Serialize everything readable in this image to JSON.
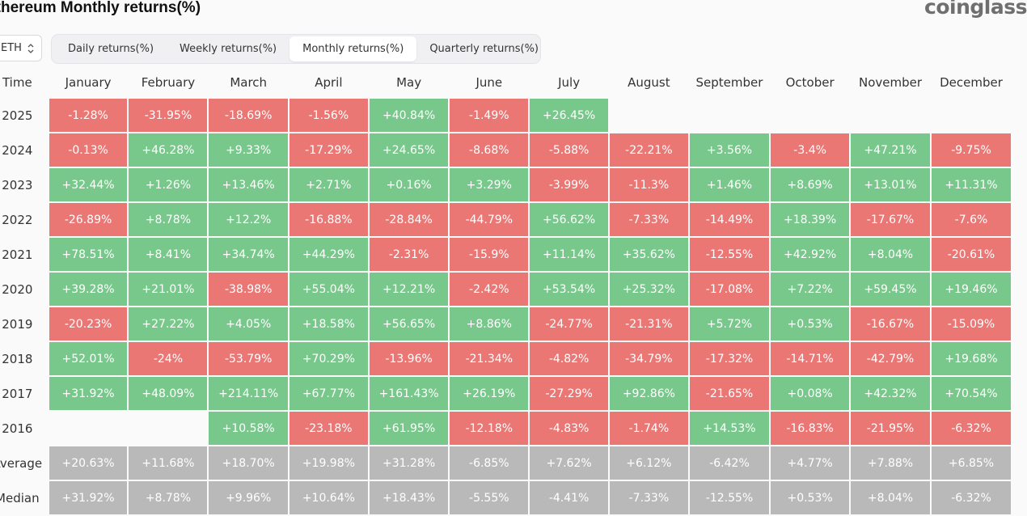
{
  "header": {
    "title": "Ethereum Monthly returns(%)",
    "logo_text": "coinglass"
  },
  "asset_select": {
    "value": "ETH",
    "icon": "chevron-up-down-icon"
  },
  "tabs": [
    {
      "label": "Daily returns(%)",
      "active": false
    },
    {
      "label": "Weekly returns(%)",
      "active": false
    },
    {
      "label": "Monthly returns(%)",
      "active": true
    },
    {
      "label": "Quarterly returns(%)",
      "active": false
    }
  ],
  "colors": {
    "positive": "#78c88b",
    "negative": "#eb7775",
    "summary": "#b9b9b9"
  },
  "table": {
    "corner_label": "Time",
    "columns": [
      "January",
      "February",
      "March",
      "April",
      "May",
      "June",
      "July",
      "August",
      "September",
      "October",
      "November",
      "December"
    ],
    "rows": [
      {
        "label": "2025",
        "values": [
          "-1.28%",
          "-31.95%",
          "-18.69%",
          "-1.56%",
          "+40.84%",
          "-1.49%",
          "+26.45%",
          "",
          "",
          "",
          "",
          ""
        ]
      },
      {
        "label": "2024",
        "values": [
          "-0.13%",
          "+46.28%",
          "+9.33%",
          "-17.29%",
          "+24.65%",
          "-8.68%",
          "-5.88%",
          "-22.21%",
          "+3.56%",
          "-3.4%",
          "+47.21%",
          "-9.75%"
        ]
      },
      {
        "label": "2023",
        "values": [
          "+32.44%",
          "+1.26%",
          "+13.46%",
          "+2.71%",
          "+0.16%",
          "+3.29%",
          "-3.99%",
          "-11.3%",
          "+1.46%",
          "+8.69%",
          "+13.01%",
          "+11.31%"
        ]
      },
      {
        "label": "2022",
        "values": [
          "-26.89%",
          "+8.78%",
          "+12.2%",
          "-16.88%",
          "-28.84%",
          "-44.79%",
          "+56.62%",
          "-7.33%",
          "-14.49%",
          "+18.39%",
          "-17.67%",
          "-7.6%"
        ]
      },
      {
        "label": "2021",
        "values": [
          "+78.51%",
          "+8.41%",
          "+34.74%",
          "+44.29%",
          "-2.31%",
          "-15.9%",
          "+11.14%",
          "+35.62%",
          "-12.55%",
          "+42.92%",
          "+8.04%",
          "-20.61%"
        ]
      },
      {
        "label": "2020",
        "values": [
          "+39.28%",
          "+21.01%",
          "-38.98%",
          "+55.04%",
          "+12.21%",
          "-2.42%",
          "+53.54%",
          "+25.32%",
          "-17.08%",
          "+7.22%",
          "+59.45%",
          "+19.46%"
        ]
      },
      {
        "label": "2019",
        "values": [
          "-20.23%",
          "+27.22%",
          "+4.05%",
          "+18.58%",
          "+56.65%",
          "+8.86%",
          "-24.77%",
          "-21.31%",
          "+5.72%",
          "+0.53%",
          "-16.67%",
          "-15.09%"
        ]
      },
      {
        "label": "2018",
        "values": [
          "+52.01%",
          "-24%",
          "-53.79%",
          "+70.29%",
          "-13.96%",
          "-21.34%",
          "-4.82%",
          "-34.79%",
          "-17.32%",
          "-14.71%",
          "-42.79%",
          "+19.68%"
        ]
      },
      {
        "label": "2017",
        "values": [
          "+31.92%",
          "+48.09%",
          "+214.11%",
          "+67.77%",
          "+161.43%",
          "+26.19%",
          "-27.29%",
          "+92.86%",
          "-21.65%",
          "+0.08%",
          "+42.32%",
          "+70.54%"
        ]
      },
      {
        "label": "2016",
        "values": [
          "",
          "",
          "+10.58%",
          "-23.18%",
          "+61.95%",
          "-12.18%",
          "-4.83%",
          "-1.74%",
          "+14.53%",
          "-16.83%",
          "-21.95%",
          "-6.32%"
        ]
      }
    ],
    "summary_rows": [
      {
        "label": "Average",
        "values": [
          "+20.63%",
          "+11.68%",
          "+18.70%",
          "+19.98%",
          "+31.28%",
          "-6.85%",
          "+7.62%",
          "+6.12%",
          "-6.42%",
          "+4.77%",
          "+7.88%",
          "+6.85%"
        ]
      },
      {
        "label": "Median",
        "values": [
          "+31.92%",
          "+8.78%",
          "+9.96%",
          "+10.64%",
          "+18.43%",
          "-5.55%",
          "-4.41%",
          "-7.33%",
          "-12.55%",
          "+0.53%",
          "+8.04%",
          "-6.32%"
        ]
      }
    ]
  }
}
